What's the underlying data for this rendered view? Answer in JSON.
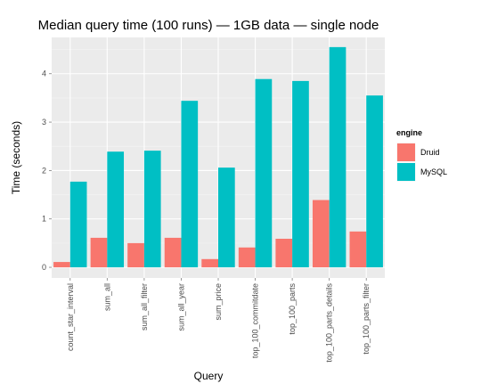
{
  "chart_data": {
    "type": "bar",
    "title": "Median query time (100 runs) — 1GB data — single node",
    "xlabel": "Query",
    "ylabel": "Time (seconds)",
    "ylim": [
      -0.22,
      4.75
    ],
    "yticks": [
      0,
      1,
      2,
      3,
      4
    ],
    "ytick_labels": [
      "0",
      "1",
      "2",
      "3",
      "4"
    ],
    "grid": true,
    "legend_position": "right",
    "legend_title": "engine",
    "categories": [
      "count_star_interval",
      "sum_all",
      "sum_all_filter",
      "sum_all_year",
      "sum_price",
      "top_100_commitdate",
      "top_100_parts",
      "top_100_parts_details",
      "top_100_parts_filter"
    ],
    "series": [
      {
        "name": "Druid",
        "color": "#F8766D",
        "values": [
          0.11,
          0.61,
          0.5,
          0.61,
          0.17,
          0.41,
          0.59,
          1.39,
          0.74
        ]
      },
      {
        "name": "MySQL",
        "color": "#00BFC4",
        "values": [
          1.77,
          2.39,
          2.41,
          3.44,
          2.06,
          3.89,
          3.85,
          4.55,
          3.55
        ]
      }
    ],
    "panel_background": "#EBEBEB"
  }
}
